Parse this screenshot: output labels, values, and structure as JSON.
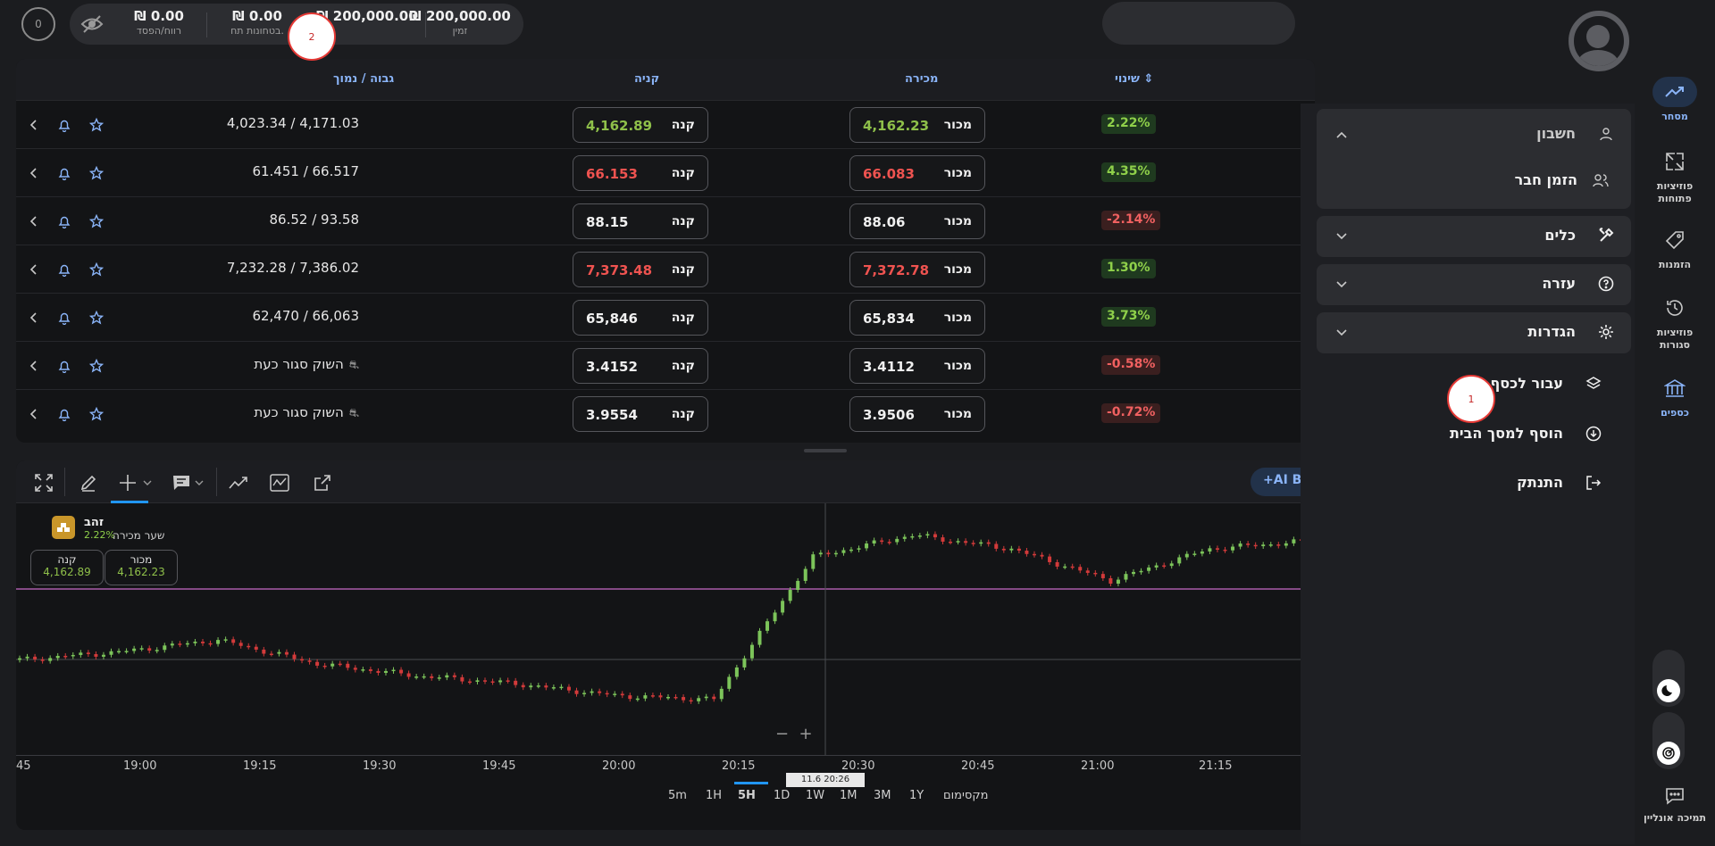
{
  "top": {
    "badge": "0",
    "stats": [
      {
        "value": "₪ 0.00",
        "label": "רווח/הפסד"
      },
      {
        "value": "₪ 0.00",
        "label": "בטחונות תח."
      },
      {
        "value": "₪ 200,000.00",
        "label": ""
      },
      {
        "value": "₪ 200,000.00",
        "label": "זמין"
      }
    ]
  },
  "table": {
    "headers": {
      "change": "שינוי",
      "sell": "מכירה",
      "buy": "קניה",
      "hilo": "גבוה / נמוך"
    },
    "buy_label": "קנה",
    "sell_label": "מכור",
    "rows": [
      {
        "change": "2.22%",
        "dir": "pos",
        "sell": "4,162.23",
        "sell_color": "green",
        "buy": "4,162.89",
        "buy_color": "green",
        "hilo": "4,023.34 / 4,171.03",
        "closed": false
      },
      {
        "change": "4.35%",
        "dir": "pos",
        "sell": "66.083",
        "sell_color": "red",
        "buy": "66.153",
        "buy_color": "red",
        "hilo": "61.451 / 66.517",
        "closed": false
      },
      {
        "change": "-2.14%",
        "dir": "neg",
        "sell": "88.06",
        "sell_color": "white",
        "buy": "88.15",
        "buy_color": "white",
        "hilo": "86.52 / 93.58",
        "closed": false
      },
      {
        "change": "1.30%",
        "dir": "pos",
        "sell": "7,372.78",
        "sell_color": "red",
        "buy": "7,373.48",
        "buy_color": "red",
        "hilo": "7,232.28 / 7,386.02",
        "closed": false
      },
      {
        "change": "3.73%",
        "dir": "pos",
        "sell": "65,834",
        "sell_color": "white",
        "buy": "65,846",
        "buy_color": "white",
        "hilo": "62,470 / 66,063",
        "closed": false
      },
      {
        "change": "-0.58%",
        "dir": "neg",
        "sell": "3.4112",
        "sell_color": "white",
        "buy": "3.4152",
        "buy_color": "white",
        "hilo": "השוק סגור כעת",
        "closed": true
      },
      {
        "change": "-0.72%",
        "dir": "neg",
        "sell": "3.9506",
        "sell_color": "white",
        "buy": "3.9554",
        "buy_color": "white",
        "hilo": "השוק סגור כעת",
        "closed": true
      }
    ]
  },
  "chart": {
    "ai_button": "+AI Bi",
    "instrument": "זהב",
    "instrument_change": "2.22%",
    "price_type": "שער מכירה",
    "buy_label": "קנה",
    "buy_price": "4,162.89",
    "sell_label": "מכור",
    "sell_price": "4,162.23",
    "crosshair_label": "11.6 20:26",
    "time_ticks": [
      "45",
      "19:00",
      "19:15",
      "19:30",
      "19:45",
      "20:00",
      "20:15",
      "20:30",
      "20:45",
      "21:00",
      "21:15"
    ],
    "ranges": [
      "5m",
      "1H",
      "5H",
      "1D",
      "1W",
      "1M",
      "3M",
      "1Y",
      "מקסימום"
    ],
    "active_range": "5H"
  },
  "chart_data": {
    "type": "candlestick",
    "x_ticks": [
      "19:00",
      "19:15",
      "19:30",
      "19:45",
      "20:00",
      "20:15",
      "20:30",
      "20:45",
      "21:00",
      "21:15"
    ],
    "close_approx": [
      0.3,
      0.34,
      0.4,
      0.28,
      0.22,
      0.18,
      0.12,
      0.1,
      0.82,
      0.93,
      0.86,
      0.7,
      0.86,
      0.9
    ],
    "grid": false
  },
  "panel": {
    "account": "חשבון",
    "invite": "הזמן חבר",
    "tools": "כלים",
    "help": "עזרה",
    "settings": "הגדרות",
    "switch_real": "עבור לכסף אמ",
    "add_home": "הוסף למסך הבית",
    "logout": "התנתק"
  },
  "nav": {
    "trade": "מסחר",
    "open_positions": "פוזיציות פתוחות",
    "orders": "הזמנות",
    "closed_positions": "פוזיציות סגורות",
    "funds": "כספים",
    "support": "תמיכה אונליין"
  },
  "markers": {
    "m1": "1",
    "m2": "2"
  }
}
